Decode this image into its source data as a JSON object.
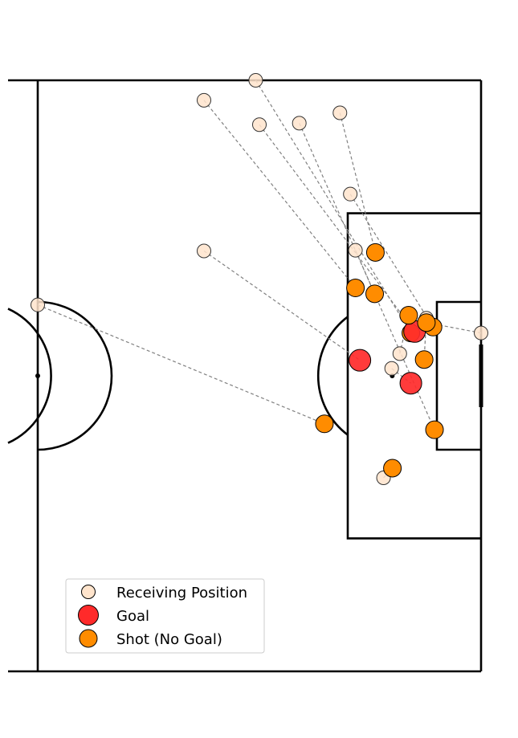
{
  "chart_data": {
    "type": "scatter",
    "title": "",
    "xlabel": "",
    "ylabel": "",
    "pitch": {
      "x_range": [
        60,
        120
      ],
      "y_range": [
        0,
        80
      ],
      "grid": false,
      "line_color": "#000000"
    },
    "legend": {
      "placement": "bottom-left",
      "entries": [
        {
          "key": "receive",
          "label": "Receiving Position",
          "color": "#FFE4CC"
        },
        {
          "key": "goal",
          "label": "Goal",
          "color": "#FF2A2A"
        },
        {
          "key": "shot",
          "label": "Shot (No Goal)",
          "color": "#FF8C00"
        }
      ]
    },
    "sequences": [
      {
        "receive": [
          89.5,
          80.0
        ],
        "shot": [
          110.5,
          45.8
        ],
        "outcome": "Shot (No Goal)"
      },
      {
        "receive": [
          82.5,
          77.3
        ],
        "shot": [
          103.0,
          51.9
        ],
        "outcome": "Shot (No Goal)"
      },
      {
        "receive": [
          90.0,
          74.0
        ],
        "shot": [
          111.0,
          46.0
        ],
        "outcome": "Goal"
      },
      {
        "receive": [
          95.4,
          74.2
        ],
        "shot": [
          113.7,
          32.7
        ],
        "outcome": "Shot (No Goal)"
      },
      {
        "receive": [
          100.9,
          75.6
        ],
        "shot": [
          105.7,
          56.7
        ],
        "outcome": "Shot (No Goal)"
      },
      {
        "receive": [
          102.3,
          64.6
        ],
        "shot": [
          113.5,
          46.6
        ],
        "outcome": "Shot (No Goal)"
      },
      {
        "receive": [
          82.5,
          56.9
        ],
        "shot": [
          103.6,
          42.1
        ],
        "outcome": "Goal"
      },
      {
        "receive": [
          120.0,
          45.8
        ],
        "shot": [
          112.6,
          47.2
        ],
        "outcome": "Shot (No Goal)"
      },
      {
        "receive": [
          60.0,
          49.6
        ],
        "shot": [
          98.8,
          33.5
        ],
        "outcome": "Shot (No Goal)"
      },
      {
        "receive": [
          103.0,
          57.0
        ],
        "shot": [
          105.6,
          51.1
        ],
        "outcome": "Shot (No Goal)"
      },
      {
        "receive": [
          107.9,
          41.0
        ],
        "shot": [
          110.5,
          39.0
        ],
        "outcome": "Goal"
      },
      {
        "receive": [
          106.8,
          26.2
        ],
        "shot": [
          108.0,
          27.5
        ],
        "outcome": "Shot (No Goal)"
      },
      {
        "receive": [
          109.0,
          43.0
        ],
        "shot": [
          110.2,
          48.2
        ],
        "outcome": "Shot (No Goal)"
      },
      {
        "receive": [
          112.6,
          47.8
        ],
        "shot": [
          112.3,
          42.2
        ],
        "outcome": "Shot (No Goal)"
      }
    ]
  }
}
